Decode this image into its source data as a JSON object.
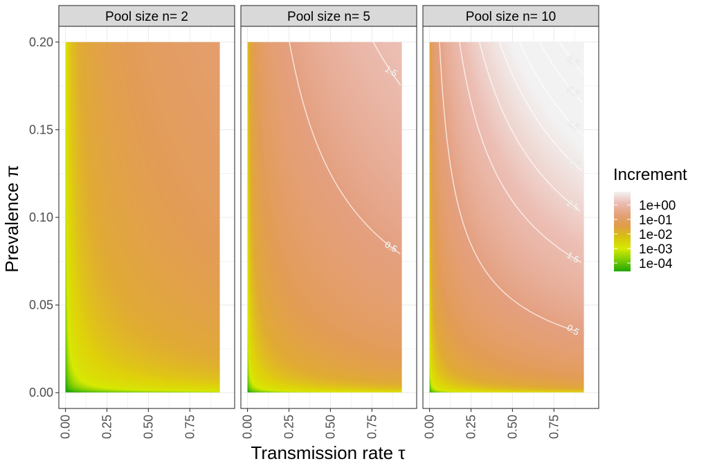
{
  "chart_data": {
    "type": "heatmap",
    "xlabel": "Transmission rate τ",
    "ylabel": "Prevalence π",
    "xlim": [
      0,
      0.93
    ],
    "ylim": [
      0,
      0.2
    ],
    "x_ticks": [
      "0.00",
      "0.25",
      "0.50",
      "0.75"
    ],
    "x_tick_values": [
      0,
      0.25,
      0.5,
      0.75
    ],
    "y_ticks": [
      "0.00",
      "0.05",
      "0.10",
      "0.15",
      "0.20"
    ],
    "y_tick_values": [
      0,
      0.05,
      0.1,
      0.15,
      0.2
    ],
    "grid": true,
    "legend": {
      "title": "Increment",
      "placement": "right",
      "scale": "log",
      "labels": [
        "1e+00",
        "1e-01",
        "1e-02",
        "1e-03",
        "1e-04"
      ],
      "colors": [
        "#f2f2f2",
        "#ebbcb4",
        "#e3a27a",
        "#e09c46",
        "#d6c30f",
        "#d7ea03",
        "#7dcc06",
        "#1fa702"
      ]
    },
    "panels": [
      {
        "name": "Pool size n= 2",
        "n": 2,
        "contours": []
      },
      {
        "name": "Pool size n= 5",
        "n": 5,
        "contours": [
          {
            "label": "0.5",
            "value": 0.5
          },
          {
            "label": "1.5",
            "value": 1.5
          }
        ]
      },
      {
        "name": "Pool size n= 10",
        "n": 10,
        "contours": [
          {
            "label": "0.5",
            "value": 0.5
          },
          {
            "label": "1.5",
            "value": 1.5
          },
          {
            "label": "2.5",
            "value": 2.5
          },
          {
            "label": "3.5",
            "value": 3.5
          },
          {
            "label": "4.5",
            "value": 4.5
          },
          {
            "label": "5.5",
            "value": 5.5
          },
          {
            "label": "6.5",
            "value": 6.5
          }
        ]
      }
    ]
  }
}
